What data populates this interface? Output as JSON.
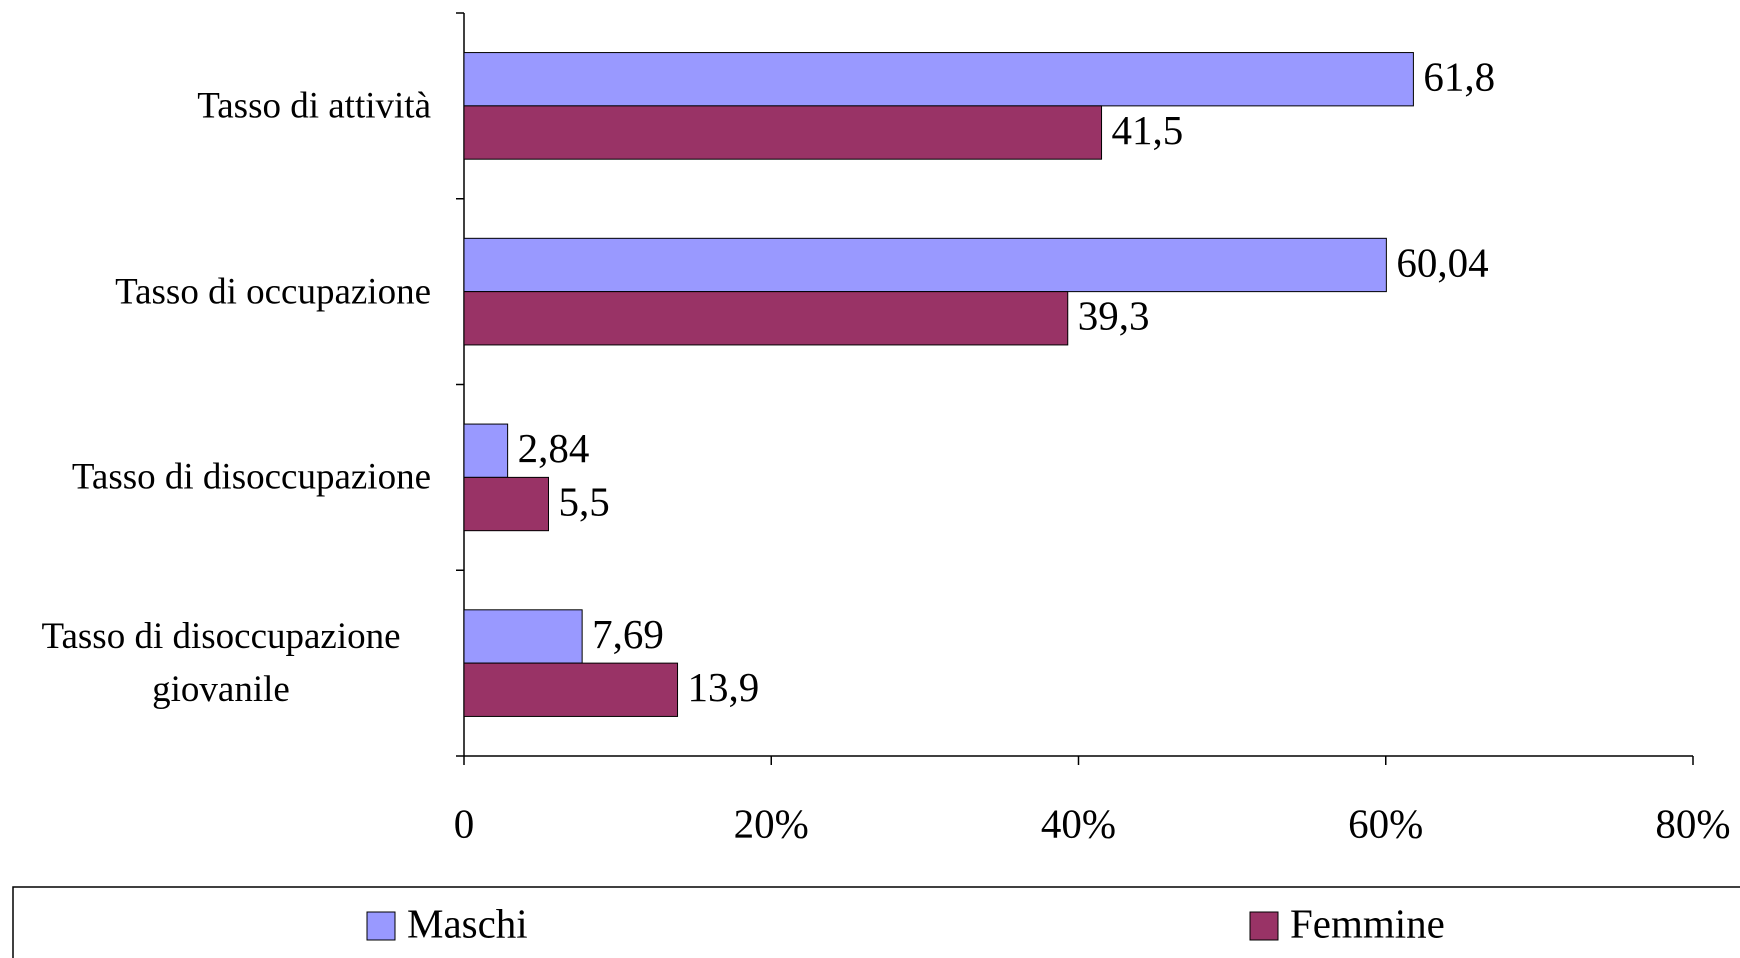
{
  "chart_data": {
    "type": "bar",
    "orientation": "horizontal",
    "categories": [
      "Tasso di attività",
      "Tasso di occupazione",
      "Tasso di disoccupazione",
      "Tasso di disoccupazione giovanile"
    ],
    "series": [
      {
        "name": "Maschi",
        "color": "#9999ff",
        "values": [
          61.8,
          60.04,
          2.84,
          7.69
        ],
        "value_labels": [
          "61,8",
          "60,04",
          "2,84",
          "7,69"
        ]
      },
      {
        "name": "Femmine",
        "color": "#993366",
        "values": [
          41.5,
          39.3,
          5.5,
          13.9
        ],
        "value_labels": [
          "41,5",
          "39,3",
          "5,5",
          "13,9"
        ]
      }
    ],
    "xlim": [
      0,
      80
    ],
    "xticks": [
      0,
      {
        "value": 20,
        "label": "20%"
      },
      {
        "value": 40,
        "label": "40%"
      },
      {
        "value": 60,
        "label": "60%"
      },
      {
        "value": 80,
        "label": "80%"
      }
    ],
    "legend": "bottom"
  }
}
